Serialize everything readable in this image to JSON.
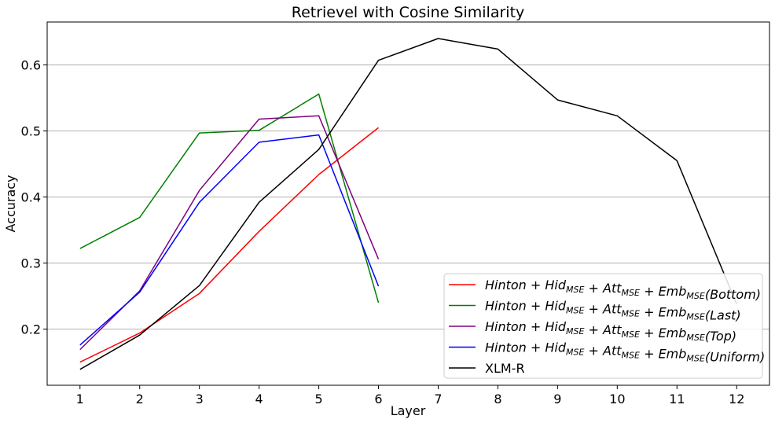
{
  "chart_data": {
    "type": "line",
    "title": "Retrievel with Cosine Similarity",
    "xlabel": "Layer",
    "ylabel": "Accuracy",
    "x_ticks": [
      1,
      2,
      3,
      4,
      5,
      6,
      7,
      8,
      9,
      10,
      11,
      12
    ],
    "y_ticks": [
      0.2,
      0.3,
      0.4,
      0.5,
      0.6
    ],
    "y_tick_labels": [
      "0.2",
      "0.3",
      "0.4",
      "0.5",
      "0.6"
    ],
    "xlim": [
      0.45,
      12.55
    ],
    "ylim": [
      0.115,
      0.665
    ],
    "grid": "horizontal",
    "legend_position": "lower-right",
    "series": [
      {
        "name": "Hinton + Hid_MSE + Att_MSE + Emb_MSE(Bottom)",
        "color": "#ff0000",
        "x": [
          1,
          2,
          3,
          4,
          5,
          6
        ],
        "values": [
          0.15,
          0.194,
          0.254,
          0.348,
          0.434,
          0.505
        ]
      },
      {
        "name": "Hinton + Hid_MSE + Att_MSE + Emb_MSE(Last)",
        "color": "#008000",
        "x": [
          1,
          2,
          3,
          4,
          5,
          6
        ],
        "values": [
          0.322,
          0.369,
          0.497,
          0.501,
          0.556,
          0.24
        ]
      },
      {
        "name": "Hinton + Hid_MSE + Att_MSE + Emb_MSE(Top)",
        "color": "#800080",
        "x": [
          1,
          2,
          3,
          4,
          5,
          6
        ],
        "values": [
          0.169,
          0.258,
          0.41,
          0.518,
          0.523,
          0.306
        ]
      },
      {
        "name": "Hinton + Hid_MSE + Att_MSE + Emb_MSE(Uniform)",
        "color": "#0000ff",
        "x": [
          1,
          2,
          3,
          4,
          5,
          6
        ],
        "values": [
          0.176,
          0.256,
          0.392,
          0.483,
          0.494,
          0.265
        ]
      },
      {
        "name": "XLM-R",
        "color": "#000000",
        "x": [
          1,
          2,
          3,
          4,
          5,
          6,
          7,
          8,
          9,
          10,
          11,
          12
        ],
        "values": [
          0.139,
          0.191,
          0.266,
          0.392,
          0.472,
          0.607,
          0.64,
          0.624,
          0.547,
          0.523,
          0.455,
          0.238
        ]
      }
    ],
    "legend": [
      {
        "main": "Hinton + Hid",
        "sub1": "MSE",
        "mid1": " + Att",
        "sub2": "MSE",
        "mid2": " + Emb",
        "sub3": "MSE",
        "tail": "(Bottom)",
        "color": "#ff0000",
        "math": true
      },
      {
        "main": "Hinton + Hid",
        "sub1": "MSE",
        "mid1": " + Att",
        "sub2": "MSE",
        "mid2": " + Emb",
        "sub3": "MSE",
        "tail": "(Last)",
        "color": "#008000",
        "math": true
      },
      {
        "main": "Hinton + Hid",
        "sub1": "MSE",
        "mid1": " + Att",
        "sub2": "MSE",
        "mid2": " + Emb",
        "sub3": "MSE",
        "tail": "(Top)",
        "color": "#800080",
        "math": true
      },
      {
        "main": "Hinton + Hid",
        "sub1": "MSE",
        "mid1": " + Att",
        "sub2": "MSE",
        "mid2": " + Emb",
        "sub3": "MSE",
        "tail": "(Uniform)",
        "color": "#0000ff",
        "math": true
      },
      {
        "main": "XLM-R",
        "color": "#000000",
        "math": false
      }
    ]
  }
}
